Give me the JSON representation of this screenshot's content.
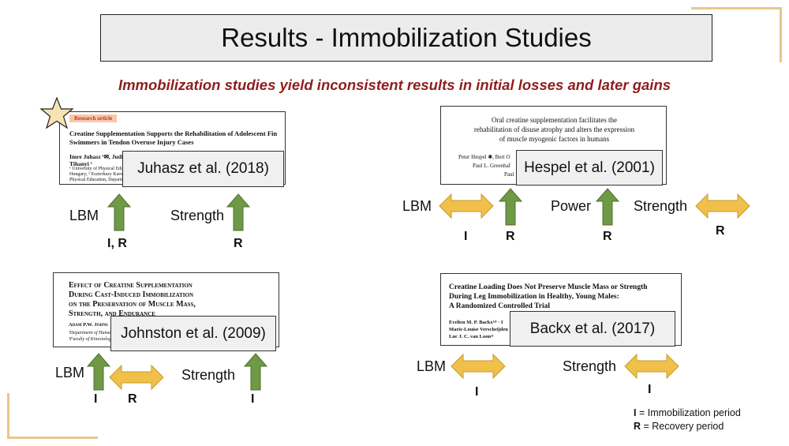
{
  "title": "Results - Immobilization Studies",
  "subtitle": "Immobilization studies yield inconsistent results in initial losses and later gains",
  "colors": {
    "arrow_up": "#6e9a45",
    "arrow_double": "#f0c04a",
    "subtitle": "#8d1f1d",
    "accent_lines": "#e9c58f",
    "star": "#f6e2b3"
  },
  "studies": {
    "juhasz": {
      "badge": "Research article",
      "paper_title": "Creatine Supplementation Supports the Rehabilitation of Adolescent Fin Swimmers in Tendon Overuse Injury Cases",
      "authors": "Imre Juhasz ¹✉, Judit Pl",
      "authors2": "Tihanyi ¹",
      "aff1": "¹ University of Physical Educati",
      "aff2": "Hungary; ² Eszterhazy Karoly",
      "aff3": "Physical Education, Department",
      "label": "Juhasz et al. (2018)",
      "lbm_label": "LBM",
      "lbm_code": "I, R",
      "strength_label": "Strength",
      "strength_code": "R"
    },
    "hespel": {
      "paper_title_1": "Oral creatine supplementation facilitates the",
      "paper_title_2": "rehabilitation of disuse atrophy and alters the expression",
      "paper_title_3": "of muscle myogenic factors in humans",
      "authors1": "Peter Hespel ✱, Bert O",
      "authors2": "Paul L. Greenhaf",
      "authors3": "Paul",
      "label": "Hespel et al. (2001)",
      "lbm_label": "LBM",
      "lbm_code_double": "I",
      "lbm_code_up": "R",
      "power_label": "Power",
      "power_code": "R",
      "strength_label": "Strength",
      "strength_code": "R"
    },
    "johnston": {
      "paper_title_1": "Effect of Creatine Supplementation",
      "paper_title_2": "During Cast-Induced Immobilization",
      "paper_title_3": "on the Preservation of Muscle Mass,",
      "paper_title_4": "Strength, and Endurance",
      "authors": "Adam P.W. Johns",
      "aff1": "¹Department of Human",
      "aff2": "²Faculty of Kinesiology a",
      "label": "Johnston et al. (2009)",
      "lbm_label": "LBM",
      "lbm_code_up": "I",
      "lbm_code_double": "R",
      "strength_label": "Strength",
      "strength_code": "I"
    },
    "backx": {
      "paper_title_1": "Creatine Loading Does Not Preserve Muscle Mass or Strength",
      "paper_title_2": "During Leg Immobilization in Healthy, Young Males:",
      "paper_title_3": "A Randomized Controlled Trial",
      "authors1": "Evelien M. P. Backx¹ʲ³ · I",
      "authors2": "Marie-Louise Verscheijden",
      "authors3": "Luc J. C. van Loon²ʳ",
      "label": "Backx et al. (2017)",
      "lbm_label": "LBM",
      "lbm_code": "I",
      "strength_label": "Strength",
      "strength_code": "I"
    }
  },
  "legend": {
    "i_key": "I",
    "i_text": " = Immobilization period",
    "r_key": "R",
    "r_text": " = Recovery period"
  }
}
